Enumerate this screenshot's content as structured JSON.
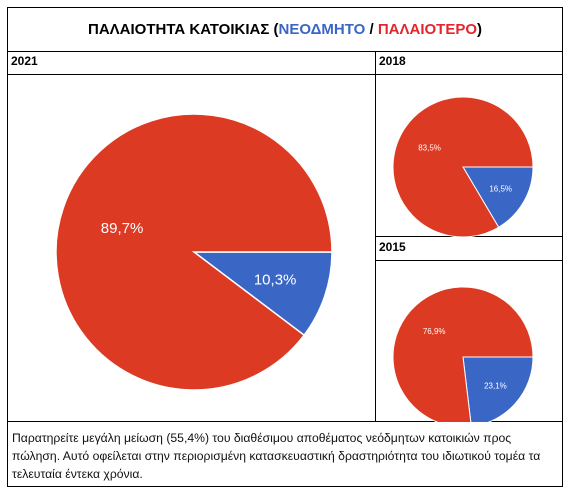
{
  "title": {
    "prefix": "ΠΑΛΑΙΟΤΗΤΑ ΚΑΤΟΙΚΙΑΣ (",
    "new_label": "ΝΕΟΔΜΗΤΟ",
    "separator": " / ",
    "old_label": "ΠΑΛΑΙΟΤΕΡΟ",
    "suffix": ")"
  },
  "colors": {
    "new": "#3a66c6",
    "old": "#dc3a22"
  },
  "chart_data": [
    {
      "type": "pie",
      "title": "2021",
      "slices": [
        {
          "category": "ΝΕΟΔΜΗΤΟ",
          "value": 10.3,
          "label": "10,3%",
          "color": "#3a66c6"
        },
        {
          "category": "ΠΑΛΑΙΟΤΕΡΟ",
          "value": 89.7,
          "label": "89,7%",
          "color": "#dc3a22"
        }
      ]
    },
    {
      "type": "pie",
      "title": "2018",
      "slices": [
        {
          "category": "ΝΕΟΔΜΗΤΟ",
          "value": 16.5,
          "label": "16,5%",
          "color": "#3a66c6"
        },
        {
          "category": "ΠΑΛΑΙΟΤΕΡΟ",
          "value": 83.5,
          "label": "83,5%",
          "color": "#dc3a22"
        }
      ]
    },
    {
      "type": "pie",
      "title": "2015",
      "slices": [
        {
          "category": "ΝΕΟΔΜΗΤΟ",
          "value": 23.1,
          "label": "23,1%",
          "color": "#3a66c6"
        },
        {
          "category": "ΠΑΛΑΙΟΤΕΡΟ",
          "value": 76.9,
          "label": "76,9%",
          "color": "#dc3a22"
        }
      ]
    }
  ],
  "note": "Παρατηρείτε μεγάλη μείωση (55,4%) του διαθέσιμου αποθέματος νεόδμητων κατοικιών προς πώληση. Αυτό οφείλεται στην περιορισμένη κατασκευαστική δραστηριότητα του ιδιωτικού τομέα τα τελευταία έντεκα χρόνια."
}
